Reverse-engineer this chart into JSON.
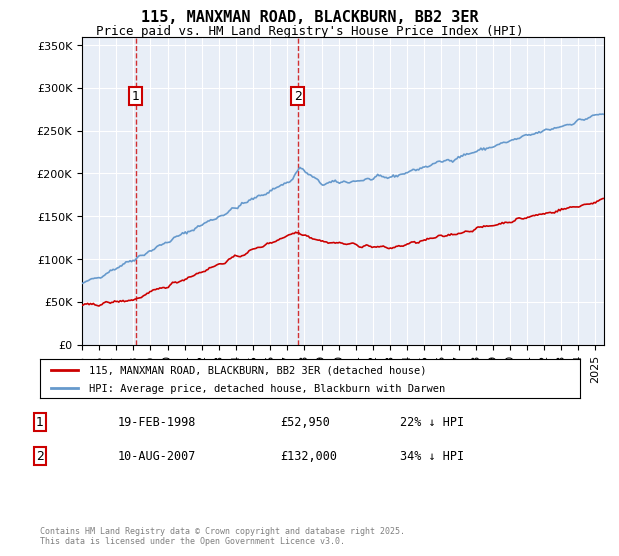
{
  "title": "115, MANXMAN ROAD, BLACKBURN, BB2 3ER",
  "subtitle": "Price paid vs. HM Land Registry's House Price Index (HPI)",
  "legend_line1": "115, MANXMAN ROAD, BLACKBURN, BB2 3ER (detached house)",
  "legend_line2": "HPI: Average price, detached house, Blackburn with Darwen",
  "footer": "Contains HM Land Registry data © Crown copyright and database right 2025.\nThis data is licensed under the Open Government Licence v3.0.",
  "sale1_label": "1",
  "sale1_date": "19-FEB-1998",
  "sale1_price": "£52,950",
  "sale1_hpi": "22% ↓ HPI",
  "sale2_label": "2",
  "sale2_date": "10-AUG-2007",
  "sale2_price": "£132,000",
  "sale2_hpi": "34% ↓ HPI",
  "property_color": "#cc0000",
  "hpi_color": "#6699cc",
  "background_color": "#e8eef7",
  "ylim": [
    0,
    360000
  ],
  "xlim_start": 1995.0,
  "xlim_end": 2025.5,
  "sale1_year": 1998.13,
  "sale1_value": 52950,
  "sale2_year": 2007.61,
  "sale2_value": 132000
}
